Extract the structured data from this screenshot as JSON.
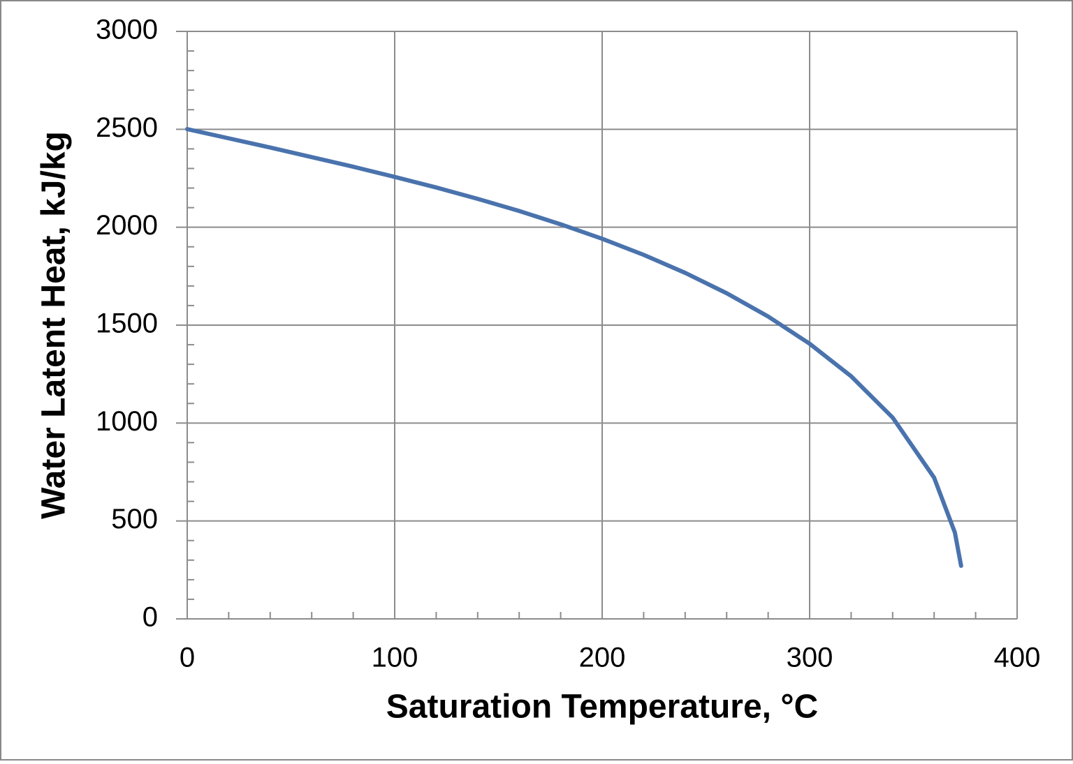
{
  "chart_data": {
    "type": "line",
    "xlabel": "Saturation Temperature, °C",
    "ylabel": "Water Latent Heat, kJ/kg",
    "x": [
      0,
      20,
      40,
      60,
      80,
      100,
      120,
      140,
      160,
      180,
      200,
      220,
      240,
      260,
      280,
      300,
      320,
      340,
      360,
      370,
      373
    ],
    "series": [
      {
        "color": "#4a73ad",
        "values": [
          2501,
          2454,
          2407,
          2358,
          2309,
          2257,
          2203,
          2145,
          2083,
          2015,
          1941,
          1859,
          1767,
          1663,
          1544,
          1405,
          1239,
          1028,
          721,
          441,
          271
        ]
      }
    ],
    "xlim": [
      0,
      400
    ],
    "xticks": [
      0,
      100,
      200,
      300,
      400
    ],
    "ylim": [
      0,
      3000
    ],
    "yticks": [
      0,
      500,
      1000,
      1500,
      2000,
      2500,
      3000
    ],
    "xminorticks": [
      20,
      40,
      60,
      80,
      120,
      140,
      160,
      180,
      220,
      240,
      260,
      280,
      320,
      340,
      360,
      380
    ],
    "yminorticks": [
      100,
      200,
      300,
      400,
      600,
      700,
      800,
      900,
      1100,
      1200,
      1300,
      1400,
      1600,
      1700,
      1800,
      1900,
      2100,
      2200,
      2300,
      2400,
      2600,
      2700,
      2800,
      2900
    ],
    "grid": true
  }
}
